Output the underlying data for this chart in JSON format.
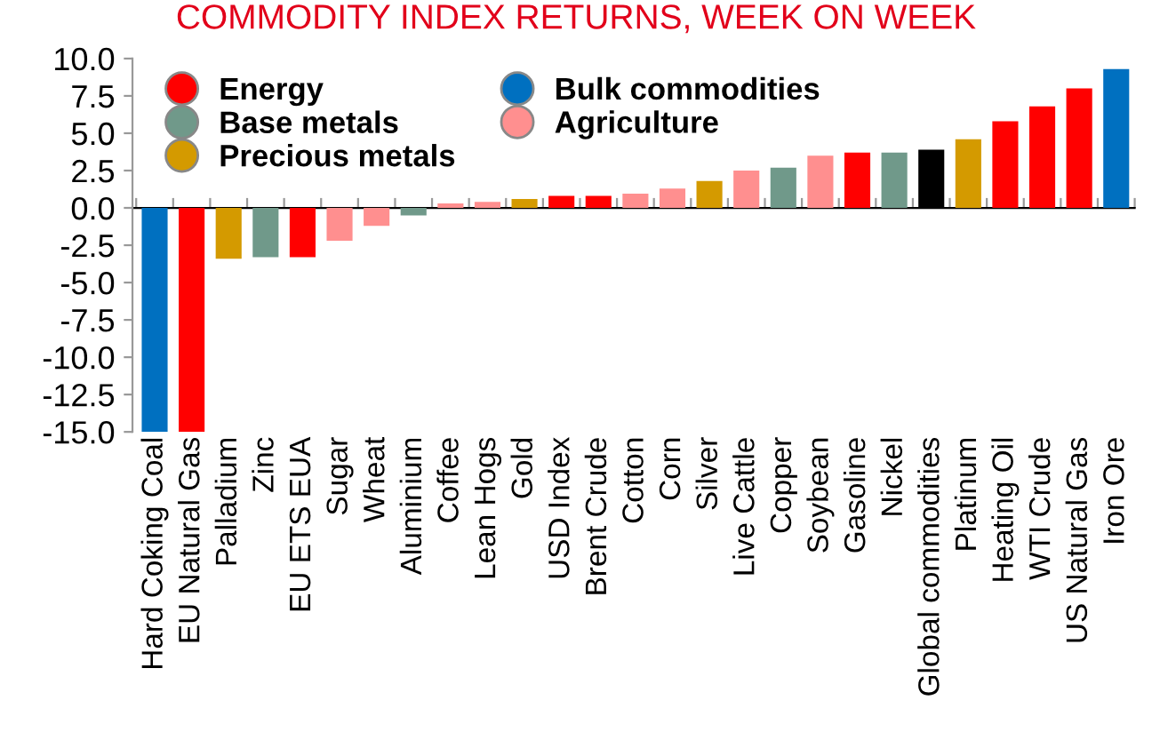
{
  "chart_data": {
    "type": "bar",
    "title": "COMMODITY INDEX RETURNS, WEEK ON WEEK",
    "categories": [
      "Hard Coking Coal",
      "EU Natural Gas",
      "Palladium",
      "Zinc",
      "EU ETS EUA",
      "Sugar",
      "Wheat",
      "Aluminium",
      "Coffee",
      "Lean Hogs",
      "Gold",
      "USD Index",
      "Brent Crude",
      "Cotton",
      "Corn",
      "Silver",
      "Live Cattle",
      "Copper",
      "Soybean",
      "Gasoline",
      "Nickel",
      "Global commodities",
      "Platinum",
      "Heating Oil",
      "WTI Crude",
      "US Natural Gas",
      "Iron Ore"
    ],
    "series": [
      {
        "name": "Energy",
        "color": "#ff0000",
        "values": [
          null,
          -15.0,
          null,
          null,
          -3.3,
          null,
          null,
          null,
          null,
          null,
          null,
          0.8,
          0.8,
          null,
          null,
          null,
          null,
          null,
          null,
          3.7,
          null,
          null,
          null,
          5.8,
          6.8,
          8.0,
          null
        ]
      },
      {
        "name": "Base metals",
        "color": "#70998a",
        "values": [
          null,
          null,
          null,
          -3.3,
          null,
          null,
          null,
          -0.5,
          null,
          null,
          null,
          null,
          null,
          null,
          null,
          null,
          null,
          2.7,
          null,
          null,
          3.7,
          null,
          null,
          null,
          null,
          null,
          null
        ]
      },
      {
        "name": "Precious metals",
        "color": "#d49a00",
        "values": [
          null,
          null,
          -3.4,
          null,
          null,
          null,
          null,
          null,
          null,
          null,
          0.6,
          null,
          null,
          null,
          null,
          1.8,
          null,
          null,
          null,
          null,
          null,
          null,
          4.6,
          null,
          null,
          null,
          null
        ]
      },
      {
        "name": "Bulk commodities",
        "color": "#0070c0",
        "values": [
          -15.0,
          null,
          null,
          null,
          null,
          null,
          null,
          null,
          null,
          null,
          null,
          null,
          null,
          null,
          null,
          null,
          null,
          null,
          null,
          null,
          null,
          null,
          null,
          null,
          null,
          null,
          9.3
        ]
      },
      {
        "name": "Agriculture",
        "color": "#ff8f8f",
        "values": [
          null,
          null,
          null,
          null,
          null,
          -2.2,
          -1.2,
          null,
          0.3,
          0.4,
          null,
          null,
          null,
          0.95,
          1.3,
          null,
          2.5,
          null,
          3.5,
          null,
          null,
          null,
          null,
          null,
          null,
          null,
          null
        ]
      },
      {
        "color": "#000000",
        "values": [
          null,
          null,
          null,
          null,
          null,
          null,
          null,
          null,
          null,
          null,
          null,
          null,
          null,
          null,
          null,
          null,
          null,
          null,
          null,
          null,
          null,
          3.9,
          null,
          null,
          null,
          null,
          null
        ]
      }
    ],
    "ylim": [
      -15,
      10
    ],
    "yticks": [
      {
        "value": -15,
        "label": "-15.0"
      },
      {
        "value": -12.5,
        "label": "-12.5"
      },
      {
        "value": -10,
        "label": "-10.0"
      },
      {
        "value": -7.5,
        "label": "-7.5"
      },
      {
        "value": -5,
        "label": "-5.0"
      },
      {
        "value": -2.5,
        "label": "-2.5"
      },
      {
        "value": 0,
        "label": "0.0"
      },
      {
        "value": 2.5,
        "label": "2.5"
      },
      {
        "value": 5,
        "label": "5.0"
      },
      {
        "value": 7.5,
        "label": "7.5"
      },
      {
        "value": 10,
        "label": "10.0"
      }
    ],
    "legend": "top left",
    "marker": "circle"
  }
}
